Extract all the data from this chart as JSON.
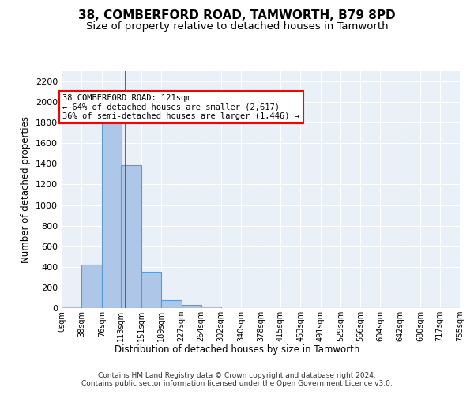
{
  "title": "38, COMBERFORD ROAD, TAMWORTH, B79 8PD",
  "subtitle": "Size of property relative to detached houses in Tamworth",
  "xlabel": "Distribution of detached houses by size in Tamworth",
  "ylabel": "Number of detached properties",
  "footer1": "Contains HM Land Registry data © Crown copyright and database right 2024.",
  "footer2": "Contains public sector information licensed under the Open Government Licence v3.0.",
  "bin_edges": [
    0,
    38,
    76,
    113,
    151,
    189,
    227,
    264,
    302,
    340,
    378,
    415,
    453,
    491,
    529,
    566,
    604,
    642,
    680,
    717,
    755
  ],
  "bin_counts": [
    15,
    420,
    1800,
    1390,
    350,
    80,
    30,
    18,
    0,
    0,
    0,
    0,
    0,
    0,
    0,
    0,
    0,
    0,
    0,
    0
  ],
  "bar_color": "#aec6e8",
  "bar_edge_color": "#5b9bd5",
  "red_line_x": 121,
  "annotation_text": "38 COMBERFORD ROAD: 121sqm\n← 64% of detached houses are smaller (2,617)\n36% of semi-detached houses are larger (1,446) →",
  "ylim": [
    0,
    2300
  ],
  "yticks": [
    0,
    200,
    400,
    600,
    800,
    1000,
    1200,
    1400,
    1600,
    1800,
    2000,
    2200
  ],
  "bg_color": "#eaf0f8",
  "grid_color": "white",
  "title_fontsize": 11,
  "subtitle_fontsize": 9.5
}
